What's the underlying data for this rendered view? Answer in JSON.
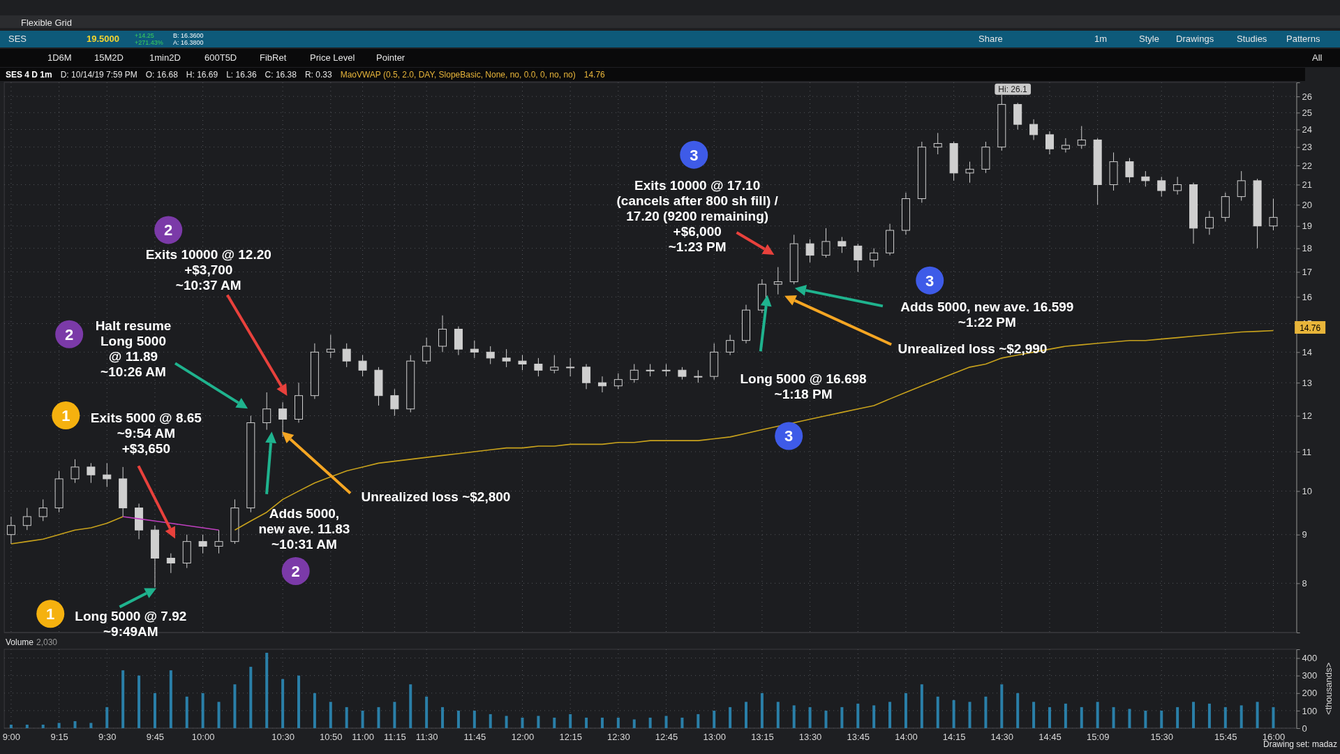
{
  "chart_data": [
    {
      "type": "candlestick",
      "categories": [
        null,
        null,
        null,
        null,
        null,
        null,
        null,
        null,
        null,
        null,
        null,
        null,
        null,
        null,
        null,
        null,
        null,
        null,
        null,
        null,
        null,
        null,
        null,
        null,
        null,
        null,
        null,
        null,
        null,
        null,
        null,
        null,
        null,
        null,
        null,
        null,
        null,
        null,
        null,
        null,
        null,
        null,
        null,
        null,
        null,
        null,
        null,
        null,
        null,
        null,
        null,
        null,
        null,
        null,
        null,
        null,
        null,
        null,
        null,
        null,
        null,
        null,
        null,
        null,
        null,
        null,
        null,
        null,
        null,
        null,
        null,
        null,
        null,
        null,
        null,
        null,
        null,
        null,
        null,
        null
      ],
      "ohlc": [
        [
          9.0,
          9.4,
          8.8,
          9.2
        ],
        [
          9.2,
          9.6,
          9.1,
          9.4
        ],
        [
          9.4,
          9.8,
          9.3,
          9.6
        ],
        [
          9.6,
          10.5,
          9.5,
          10.3
        ],
        [
          10.3,
          10.8,
          10.2,
          10.6
        ],
        [
          10.6,
          10.7,
          10.2,
          10.4
        ],
        [
          10.4,
          10.7,
          10.1,
          10.3
        ],
        [
          10.3,
          10.6,
          9.4,
          9.6
        ],
        [
          9.6,
          9.7,
          8.9,
          9.1
        ],
        [
          9.1,
          9.2,
          7.92,
          8.5
        ],
        [
          8.5,
          8.6,
          8.2,
          8.4
        ],
        [
          8.4,
          9.0,
          8.3,
          8.85
        ],
        [
          8.85,
          9.0,
          8.6,
          8.75
        ],
        [
          8.75,
          9.1,
          8.6,
          8.85
        ],
        [
          8.85,
          9.8,
          8.8,
          9.6
        ],
        [
          9.6,
          12.0,
          9.5,
          11.8
        ],
        [
          11.8,
          12.7,
          11.6,
          12.2
        ],
        [
          12.2,
          12.4,
          11.4,
          11.9
        ],
        [
          11.9,
          13.0,
          11.8,
          12.6
        ],
        [
          12.6,
          14.3,
          12.5,
          14.0
        ],
        [
          14.0,
          14.6,
          13.8,
          14.1
        ],
        [
          14.1,
          14.3,
          13.5,
          13.7
        ],
        [
          13.7,
          13.9,
          13.2,
          13.4
        ],
        [
          13.4,
          13.5,
          12.3,
          12.6
        ],
        [
          12.6,
          12.8,
          12.0,
          12.2
        ],
        [
          12.2,
          13.9,
          12.1,
          13.7
        ],
        [
          13.7,
          14.5,
          13.6,
          14.2
        ],
        [
          14.2,
          15.3,
          14.0,
          14.8
        ],
        [
          14.8,
          14.9,
          13.9,
          14.1
        ],
        [
          14.1,
          14.4,
          13.8,
          14.0
        ],
        [
          14.0,
          14.2,
          13.6,
          13.8
        ],
        [
          13.8,
          14.1,
          13.5,
          13.7
        ],
        [
          13.7,
          13.9,
          13.4,
          13.6
        ],
        [
          13.6,
          13.8,
          13.2,
          13.4
        ],
        [
          13.4,
          13.9,
          13.3,
          13.5
        ],
        [
          13.5,
          13.8,
          13.2,
          13.5
        ],
        [
          13.5,
          13.6,
          12.8,
          13.0
        ],
        [
          13.0,
          13.2,
          12.7,
          12.9
        ],
        [
          12.9,
          13.3,
          12.8,
          13.1
        ],
        [
          13.1,
          13.6,
          13.0,
          13.4
        ],
        [
          13.4,
          13.6,
          13.2,
          13.4
        ],
        [
          13.4,
          13.6,
          13.2,
          13.4
        ],
        [
          13.4,
          13.5,
          13.1,
          13.2
        ],
        [
          13.2,
          13.4,
          13.0,
          13.2
        ],
        [
          13.2,
          14.3,
          13.1,
          14.0
        ],
        [
          14.0,
          14.6,
          13.9,
          14.4
        ],
        [
          14.4,
          15.7,
          14.3,
          15.5
        ],
        [
          15.5,
          16.7,
          15.4,
          16.5
        ],
        [
          16.5,
          17.2,
          16.1,
          16.6
        ],
        [
          16.6,
          18.6,
          16.5,
          18.2
        ],
        [
          18.2,
          18.4,
          17.4,
          17.7
        ],
        [
          17.7,
          18.9,
          17.6,
          18.3
        ],
        [
          18.3,
          18.5,
          17.8,
          18.1
        ],
        [
          18.1,
          18.2,
          17.0,
          17.5
        ],
        [
          17.5,
          18.0,
          17.2,
          17.8
        ],
        [
          17.8,
          19.1,
          17.7,
          18.8
        ],
        [
          18.8,
          20.6,
          18.6,
          20.3
        ],
        [
          20.3,
          23.3,
          20.1,
          23.0
        ],
        [
          23.0,
          23.8,
          22.6,
          23.2
        ],
        [
          23.2,
          23.3,
          21.2,
          21.6
        ],
        [
          21.6,
          22.2,
          21.1,
          21.8
        ],
        [
          21.8,
          23.3,
          21.6,
          23.0
        ],
        [
          23.0,
          26.1,
          22.8,
          25.5
        ],
        [
          25.5,
          25.6,
          24.0,
          24.3
        ],
        [
          24.3,
          24.6,
          23.4,
          23.7
        ],
        [
          23.7,
          23.9,
          22.6,
          22.9
        ],
        [
          22.9,
          23.5,
          22.7,
          23.1
        ],
        [
          23.1,
          24.2,
          22.9,
          23.4
        ],
        [
          23.4,
          23.5,
          20.0,
          21.0
        ],
        [
          21.0,
          22.7,
          20.7,
          22.2
        ],
        [
          22.2,
          22.4,
          21.1,
          21.4
        ],
        [
          21.4,
          21.7,
          20.9,
          21.2
        ],
        [
          21.2,
          21.4,
          20.4,
          20.7
        ],
        [
          20.7,
          21.4,
          20.5,
          21.0
        ],
        [
          21.0,
          21.1,
          18.2,
          18.9
        ],
        [
          18.9,
          19.7,
          18.6,
          19.4
        ],
        [
          19.4,
          20.6,
          19.2,
          20.4
        ],
        [
          20.4,
          21.7,
          20.2,
          21.2
        ],
        [
          21.2,
          21.3,
          18.0,
          19.0
        ],
        [
          19.0,
          20.3,
          18.8,
          19.4
        ]
      ],
      "series": [
        {
          "type": "line",
          "color": "#c8a21c",
          "values": [
            8.8,
            8.85,
            8.9,
            9.0,
            9.1,
            9.15,
            9.25,
            9.4,
            null,
            null,
            null,
            null,
            null,
            null,
            9.1,
            9.3,
            9.5,
            9.8,
            10.0,
            10.2,
            10.35,
            10.5,
            10.6,
            10.7,
            10.75,
            10.8,
            10.85,
            10.9,
            10.95,
            11.0,
            11.05,
            11.1,
            11.1,
            11.15,
            11.15,
            11.2,
            11.2,
            11.2,
            11.25,
            11.25,
            11.3,
            11.3,
            11.3,
            11.3,
            11.35,
            11.4,
            11.5,
            11.6,
            11.7,
            11.8,
            11.9,
            12.0,
            12.1,
            12.2,
            12.3,
            12.5,
            12.7,
            12.9,
            13.1,
            13.3,
            13.5,
            13.6,
            13.8,
            13.9,
            14.0,
            14.1,
            14.2,
            14.25,
            14.3,
            14.35,
            14.4,
            14.4,
            14.45,
            14.5,
            14.55,
            14.6,
            14.65,
            14.7,
            14.72,
            14.75
          ]
        },
        {
          "type": "line",
          "color": "#c040c0",
          "values": [
            null,
            null,
            null,
            null,
            null,
            null,
            null,
            9.4,
            9.35,
            9.3,
            9.25,
            9.2,
            9.15,
            9.1,
            null,
            null,
            null,
            null,
            null,
            null,
            null,
            null,
            null,
            null,
            null,
            null,
            null,
            null,
            null,
            null,
            null,
            null,
            null,
            null,
            null,
            null,
            null,
            null,
            null,
            null,
            null,
            null,
            null,
            null,
            null,
            null,
            null,
            null,
            null,
            null,
            null,
            null,
            null,
            null,
            null,
            null,
            null,
            null,
            null,
            null,
            null,
            null,
            null,
            null,
            null,
            null,
            null,
            null,
            null,
            null,
            null,
            null,
            null,
            null,
            null,
            null,
            null,
            null,
            null,
            null
          ]
        }
      ],
      "ylim": [
        7.1,
        26.9
      ],
      "yticks": [
        8,
        9,
        10,
        11,
        12,
        13,
        14,
        15,
        16,
        17,
        18,
        19,
        20,
        21,
        22,
        23,
        24,
        25,
        26
      ],
      "log": true,
      "grid": true,
      "tick_labels": "y",
      "annotations": [
        "Long 5000 @ 7.92\n~9:49AM",
        "1",
        "1",
        "Exits 5000 @ 8.65\n~9:54 AM\n+$3,650",
        "2",
        "Halt resume\nLong 5000\n@ 11.89\n~10:26 AM",
        "2",
        "Exits 10000 @ 12.20\n+$3,700\n~10:37 AM",
        "Adds 5000,\nnew ave. 11.83\n~10:31 AM",
        "2",
        "Unrealized loss ~$2,800",
        "3",
        "Exits 10000 @ 17.10\n(cancels after 800 sh fill) /\n17.20 (9200 remaining)\n+$6,000\n~1:23 PM",
        "3",
        "Adds 5000, new ave. 16.599\n~1:22 PM",
        "Unrealized loss ~$2,990",
        "Long 5000 @ 16.698\n~1:18 PM",
        "3",
        "Hi: 26.1",
        "14.76",
        "SES 4 D 1m",
        "D: 10/14/19 7:59 PM",
        "O: 16.68",
        "H: 16.69",
        "L: 16.36",
        "C: 16.38",
        "R: 0.33",
        "MaoVWAP (0.5, 2.0, DAY, SlopeBasic, None, no, 0.0, 0, no, no)",
        "14.76",
        "Flexible Grid",
        "SES",
        "19.5000",
        "+14.25",
        "+271.43%",
        "B: 16.3600",
        "A: 16.3800",
        "1D6M",
        "15M2D",
        "1min2D",
        "600T5D",
        "FibRet",
        "Price Level",
        "Pointer",
        "Share",
        "1m",
        "Style",
        "Drawings",
        "Studies",
        "Patterns",
        "All"
      ]
    },
    {
      "type": "bar",
      "categories": [
        "9:00",
        null,
        null,
        "9:15",
        null,
        null,
        "9:30",
        null,
        null,
        "9:45",
        null,
        null,
        "10:00",
        null,
        null,
        null,
        null,
        "10:30",
        null,
        null,
        "10:50",
        null,
        "11:00",
        null,
        "11:15",
        null,
        "11:30",
        null,
        null,
        "11:45",
        null,
        null,
        "12:00",
        null,
        null,
        "12:15",
        null,
        null,
        "12:30",
        null,
        null,
        "12:45",
        null,
        null,
        "13:00",
        null,
        null,
        "13:15",
        null,
        null,
        "13:30",
        null,
        null,
        "13:45",
        null,
        null,
        "14:00",
        null,
        null,
        "14:15",
        null,
        null,
        "14:30",
        null,
        null,
        "14:45",
        null,
        null,
        "15:09",
        null,
        null,
        null,
        "15:30",
        null,
        null,
        null,
        "15:45",
        null,
        null,
        "16:00"
      ],
      "values": [
        20,
        20,
        20,
        30,
        40,
        30,
        120,
        330,
        300,
        200,
        330,
        180,
        200,
        150,
        250,
        350,
        430,
        280,
        300,
        200,
        150,
        120,
        100,
        120,
        150,
        250,
        180,
        120,
        100,
        100,
        80,
        70,
        60,
        70,
        60,
        80,
        60,
        60,
        60,
        50,
        60,
        70,
        60,
        80,
        100,
        120,
        150,
        200,
        150,
        130,
        120,
        100,
        120,
        140,
        130,
        150,
        200,
        250,
        180,
        160,
        150,
        180,
        250,
        200,
        150,
        120,
        140,
        120,
        150,
        120,
        110,
        100,
        100,
        120,
        150,
        140,
        120,
        130,
        150,
        120
      ],
      "color": "#2a7fa8",
      "ylim": [
        0,
        450
      ],
      "yticks": [
        0,
        100,
        200,
        300,
        400
      ],
      "ylabel": "<thousands>",
      "grid": true,
      "annotations": [
        "Volume",
        "2,030",
        "Drawing set: madaz"
      ]
    }
  ]
}
